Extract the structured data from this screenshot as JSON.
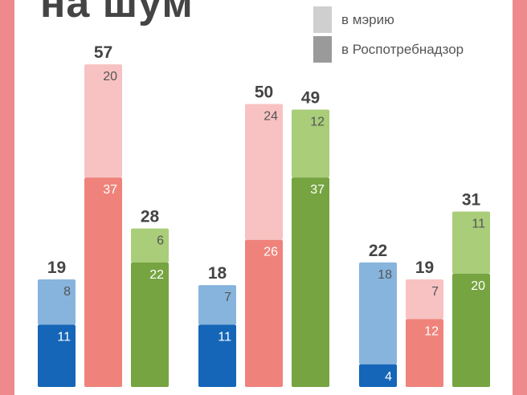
{
  "title": "на шум",
  "legend": [
    {
      "label": "в мэрию",
      "color": "#cfcfcf"
    },
    {
      "label": "в Роспотребнадзор",
      "color": "#9a9a9a"
    }
  ],
  "chart_data": {
    "type": "bar",
    "stacked": true,
    "groups": [
      {
        "bars": [
          {
            "total": 19,
            "rospotrebnadzor": 11,
            "meriya": 8,
            "color_bottom": "#1566b8",
            "color_top": "#87b4dd"
          },
          {
            "total": 57,
            "rospotrebnadzor": 37,
            "meriya": 20,
            "color_bottom": "#ef837b",
            "color_top": "#f8c2c2"
          },
          {
            "total": 28,
            "rospotrebnadzor": 22,
            "meriya": 6,
            "color_bottom": "#76a441",
            "color_top": "#a9cd79"
          }
        ]
      },
      {
        "bars": [
          {
            "total": 18,
            "rospotrebnadzor": 11,
            "meriya": 7,
            "color_bottom": "#1566b8",
            "color_top": "#87b4dd"
          },
          {
            "total": 50,
            "rospotrebnadzor": 26,
            "meriya": 24,
            "color_bottom": "#ef837b",
            "color_top": "#f8c2c2"
          },
          {
            "total": 49,
            "rospotrebnadzor": 37,
            "meriya": 12,
            "color_bottom": "#76a441",
            "color_top": "#a9cd79"
          }
        ]
      },
      {
        "bars": [
          {
            "total": 22,
            "rospotrebnadzor": 4,
            "meriya": 18,
            "color_bottom": "#1566b8",
            "color_top": "#87b4dd"
          },
          {
            "total": 19,
            "rospotrebnadzor": 12,
            "meriya": 7,
            "color_bottom": "#ef837b",
            "color_top": "#f8c2c2"
          },
          {
            "total": 31,
            "rospotrebnadzor": 20,
            "meriya": 11,
            "color_bottom": "#76a441",
            "color_top": "#a9cd79"
          }
        ]
      }
    ],
    "series": [
      {
        "name": "в Роспотребнадзор",
        "key": "rospotrebnadzor"
      },
      {
        "name": "в мэрию",
        "key": "meriya"
      }
    ],
    "ylim": [
      0,
      60
    ]
  }
}
